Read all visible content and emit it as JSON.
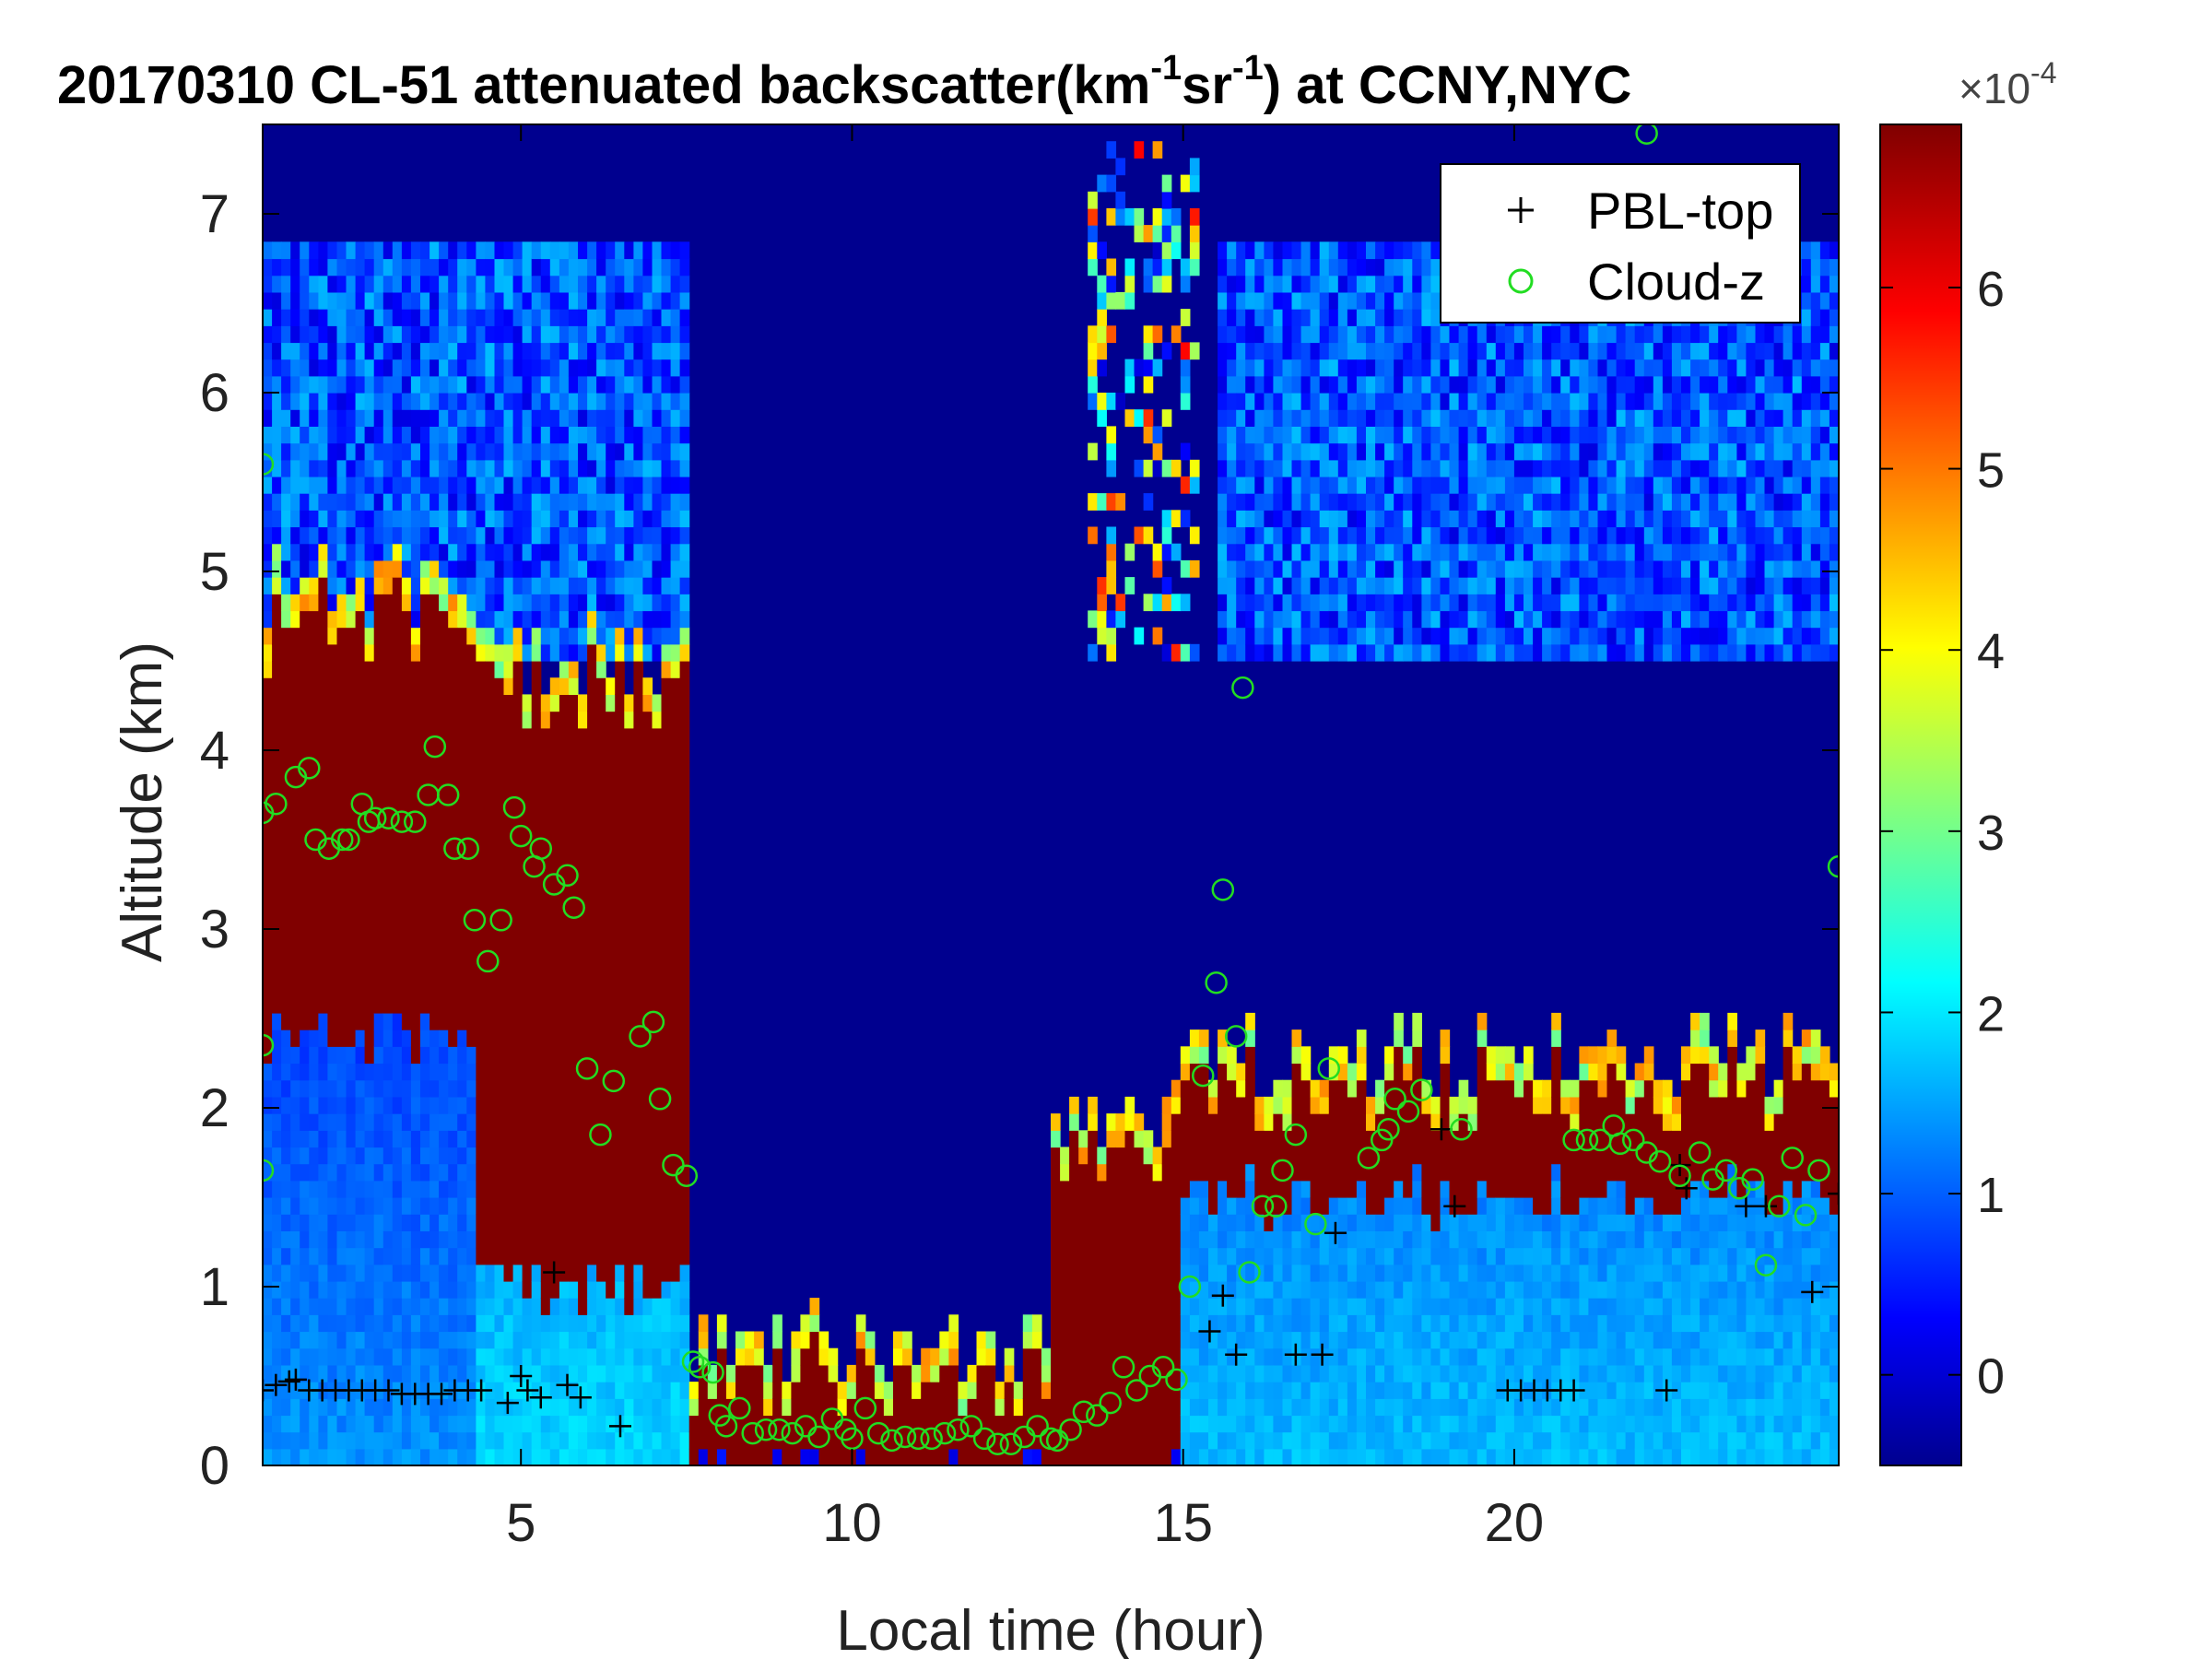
{
  "chart_data": {
    "type": "heatmap",
    "title": {
      "prefix": "20170310  CL-51 attenuated backscatter(km",
      "sup1": "-1",
      "mid": "sr",
      "sup2": "-1",
      "suffix": ") at CCNY,NYC"
    },
    "xlabel": "Local time (hour)",
    "ylabel": "Altitude (km)",
    "xlim": [
      1.1,
      24.9
    ],
    "ylim": [
      0,
      7.5
    ],
    "xticks": [
      5,
      10,
      15,
      20
    ],
    "yticks": [
      0,
      1,
      2,
      3,
      4,
      5,
      6,
      7
    ],
    "colorbar": {
      "range": [
        -0.5,
        6.9
      ],
      "ticks": [
        0,
        1,
        2,
        3,
        4,
        5,
        6
      ],
      "exponent_label": "×10",
      "exponent_sup": "-4",
      "colormap": "jet"
    },
    "legend": {
      "location": "top-right",
      "entries": [
        {
          "name": "PBL-top",
          "marker": "+",
          "color": "#000000"
        },
        {
          "name": "Cloud-z",
          "marker": "o",
          "color": "#22dd22"
        }
      ]
    },
    "backscatter_profile": {
      "note_units": "x10^-4 km^-1 sr^-1",
      "regimes": [
        {
          "from": 1.1,
          "to": 4.3,
          "surface": 1.5,
          "cloud_base": 2.4,
          "cloud_top": 4.7,
          "cloud_value": 7
        },
        {
          "from": 4.3,
          "to": 7.5,
          "surface": 2.0,
          "cloud_base": 1.0,
          "cloud_top": 4.3,
          "cloud_value": 7
        },
        {
          "from": 7.5,
          "to": 13.0,
          "surface": 0.4,
          "cloud_base": 0.0,
          "cloud_top": 0.5,
          "cloud_value": 7
        },
        {
          "from": 13.0,
          "to": 15.0,
          "surface": 0.4,
          "cloud_base": 0.0,
          "cloud_top": 1.8,
          "cloud_value": 7
        },
        {
          "from": 15.0,
          "to": 24.9,
          "surface": 1.8,
          "cloud_base": 1.5,
          "cloud_top": 2.1,
          "cloud_value": 7
        }
      ]
    },
    "series": [
      {
        "name": "PBL-top",
        "points": [
          [
            1.1,
            0.42
          ],
          [
            1.3,
            0.45
          ],
          [
            1.5,
            0.47
          ],
          [
            1.6,
            0.48
          ],
          [
            1.8,
            0.42
          ],
          [
            2.0,
            0.42
          ],
          [
            2.2,
            0.42
          ],
          [
            2.4,
            0.42
          ],
          [
            2.6,
            0.42
          ],
          [
            2.8,
            0.42
          ],
          [
            3.0,
            0.42
          ],
          [
            3.2,
            0.4
          ],
          [
            3.4,
            0.4
          ],
          [
            3.6,
            0.4
          ],
          [
            3.8,
            0.4
          ],
          [
            4.0,
            0.42
          ],
          [
            4.2,
            0.42
          ],
          [
            4.4,
            0.42
          ],
          [
            4.8,
            0.35
          ],
          [
            5.0,
            0.5
          ],
          [
            5.1,
            0.42
          ],
          [
            5.3,
            0.38
          ],
          [
            5.5,
            1.08
          ],
          [
            5.7,
            0.45
          ],
          [
            5.9,
            0.38
          ],
          [
            6.5,
            0.22
          ],
          [
            15.4,
            0.75
          ],
          [
            15.6,
            0.95
          ],
          [
            15.8,
            0.62
          ],
          [
            16.7,
            0.62
          ],
          [
            17.1,
            0.62
          ],
          [
            17.3,
            1.3
          ],
          [
            18.9,
            1.88
          ],
          [
            19.1,
            1.45
          ],
          [
            19.9,
            0.42
          ],
          [
            20.1,
            0.42
          ],
          [
            20.3,
            0.42
          ],
          [
            20.5,
            0.42
          ],
          [
            20.7,
            0.42
          ],
          [
            20.9,
            0.42
          ],
          [
            22.3,
            0.42
          ],
          [
            22.6,
            1.55
          ],
          [
            22.5,
            1.68
          ],
          [
            23.5,
            1.45
          ],
          [
            23.8,
            1.45
          ],
          [
            24.5,
            0.97
          ],
          [
            24.9,
            1.52
          ]
        ]
      },
      {
        "name": "Cloud-z",
        "points": [
          [
            1.1,
            3.65
          ],
          [
            1.3,
            3.7
          ],
          [
            1.6,
            3.85
          ],
          [
            1.8,
            3.9
          ],
          [
            1.9,
            3.5
          ],
          [
            2.1,
            3.45
          ],
          [
            2.3,
            3.5
          ],
          [
            2.4,
            3.5
          ],
          [
            2.6,
            3.7
          ],
          [
            2.7,
            3.6
          ],
          [
            2.8,
            3.62
          ],
          [
            3.0,
            3.62
          ],
          [
            3.2,
            3.6
          ],
          [
            3.4,
            3.6
          ],
          [
            3.6,
            3.75
          ],
          [
            3.7,
            4.02
          ],
          [
            3.9,
            3.75
          ],
          [
            4.0,
            3.45
          ],
          [
            4.2,
            3.45
          ],
          [
            4.3,
            3.05
          ],
          [
            4.5,
            2.82
          ],
          [
            4.7,
            3.05
          ],
          [
            4.9,
            3.68
          ],
          [
            5.0,
            3.52
          ],
          [
            5.2,
            3.35
          ],
          [
            5.3,
            3.45
          ],
          [
            5.5,
            3.25
          ],
          [
            5.7,
            3.3
          ],
          [
            5.8,
            3.12
          ],
          [
            6.0,
            2.22
          ],
          [
            6.2,
            1.85
          ],
          [
            6.4,
            2.15
          ],
          [
            6.8,
            2.4
          ],
          [
            7.0,
            2.48
          ],
          [
            7.1,
            2.05
          ],
          [
            7.3,
            1.68
          ],
          [
            7.5,
            1.62
          ],
          [
            7.6,
            0.58
          ],
          [
            7.7,
            0.55
          ],
          [
            7.9,
            0.52
          ],
          [
            8.0,
            0.28
          ],
          [
            8.1,
            0.22
          ],
          [
            8.3,
            0.32
          ],
          [
            8.5,
            0.18
          ],
          [
            8.7,
            0.2
          ],
          [
            8.9,
            0.2
          ],
          [
            9.1,
            0.18
          ],
          [
            9.3,
            0.22
          ],
          [
            9.5,
            0.16
          ],
          [
            9.7,
            0.26
          ],
          [
            9.9,
            0.2
          ],
          [
            10.0,
            0.15
          ],
          [
            10.2,
            0.32
          ],
          [
            10.4,
            0.18
          ],
          [
            10.6,
            0.14
          ],
          [
            10.8,
            0.16
          ],
          [
            11.0,
            0.15
          ],
          [
            11.2,
            0.15
          ],
          [
            11.4,
            0.18
          ],
          [
            11.6,
            0.2
          ],
          [
            11.8,
            0.22
          ],
          [
            12.0,
            0.15
          ],
          [
            12.2,
            0.12
          ],
          [
            12.4,
            0.12
          ],
          [
            12.6,
            0.16
          ],
          [
            12.8,
            0.22
          ],
          [
            13.0,
            0.15
          ],
          [
            13.1,
            0.14
          ],
          [
            13.3,
            0.2
          ],
          [
            13.5,
            0.3
          ],
          [
            13.7,
            0.28
          ],
          [
            13.9,
            0.35
          ],
          [
            14.1,
            0.55
          ],
          [
            14.3,
            0.42
          ],
          [
            14.5,
            0.5
          ],
          [
            14.7,
            0.55
          ],
          [
            14.9,
            0.48
          ],
          [
            15.1,
            1.0
          ],
          [
            15.3,
            2.18
          ],
          [
            15.5,
            2.7
          ],
          [
            15.6,
            3.22
          ],
          [
            15.8,
            2.4
          ],
          [
            15.9,
            4.35
          ],
          [
            16.0,
            1.08
          ],
          [
            16.2,
            1.45
          ],
          [
            16.4,
            1.45
          ],
          [
            16.5,
            1.65
          ],
          [
            16.7,
            1.85
          ],
          [
            17.0,
            1.35
          ],
          [
            17.2,
            2.22
          ],
          [
            17.8,
            1.72
          ],
          [
            18.0,
            1.82
          ],
          [
            18.1,
            1.88
          ],
          [
            18.2,
            2.05
          ],
          [
            18.4,
            1.98
          ],
          [
            18.6,
            2.1
          ],
          [
            19.2,
            1.88
          ],
          [
            20.9,
            1.82
          ],
          [
            21.1,
            1.82
          ],
          [
            21.3,
            1.82
          ],
          [
            21.5,
            1.9
          ],
          [
            21.6,
            1.8
          ],
          [
            21.8,
            1.82
          ],
          [
            22.0,
            1.75
          ],
          [
            22.2,
            1.7
          ],
          [
            22.5,
            1.62
          ],
          [
            22.8,
            1.75
          ],
          [
            23.0,
            1.6
          ],
          [
            23.2,
            1.65
          ],
          [
            23.4,
            1.55
          ],
          [
            23.6,
            1.6
          ],
          [
            23.8,
            1.12
          ],
          [
            24.0,
            1.45
          ],
          [
            24.2,
            1.72
          ],
          [
            24.4,
            1.4
          ],
          [
            24.6,
            1.65
          ],
          [
            24.9,
            3.35
          ],
          [
            22.0,
            7.45
          ],
          [
            1.1,
            2.35
          ],
          [
            1.1,
            5.6
          ],
          [
            1.1,
            1.65
          ]
        ]
      }
    ]
  }
}
